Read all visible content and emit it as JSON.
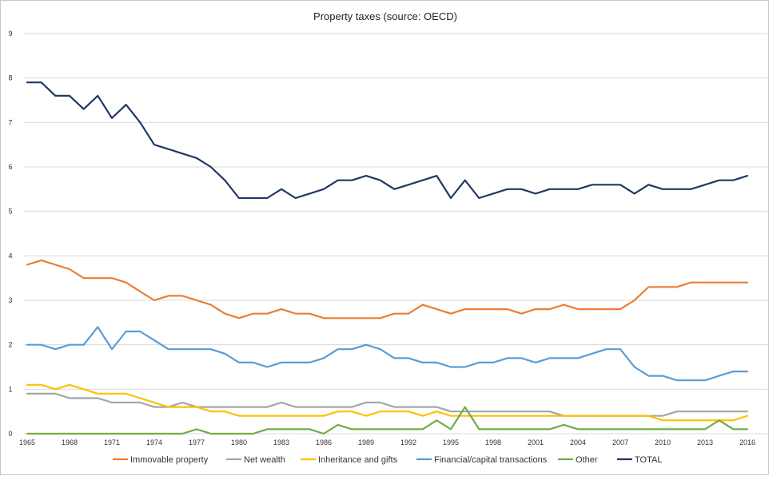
{
  "chart_data": {
    "type": "line",
    "title": "Property taxes (source: OECD)",
    "xlabel": "",
    "ylabel": "",
    "ylim": [
      0,
      9
    ],
    "yticks": [
      0,
      1,
      2,
      3,
      4,
      5,
      6,
      7,
      8,
      9
    ],
    "grid": true,
    "legend": "bottom",
    "x": [
      1965,
      1966,
      1967,
      1968,
      1969,
      1970,
      1971,
      1972,
      1973,
      1974,
      1975,
      1976,
      1977,
      1978,
      1979,
      1980,
      1981,
      1982,
      1983,
      1984,
      1985,
      1986,
      1987,
      1988,
      1989,
      1990,
      1991,
      1992,
      1993,
      1994,
      1995,
      1996,
      1997,
      1998,
      1999,
      2000,
      2001,
      2002,
      2003,
      2004,
      2005,
      2006,
      2007,
      2008,
      2009,
      2010,
      2011,
      2012,
      2013,
      2014,
      2015,
      2016
    ],
    "xtick_labels": [
      "1965",
      "1968",
      "1971",
      "1974",
      "1977",
      "1980",
      "1983",
      "1986",
      "1989",
      "1992",
      "1995",
      "1998",
      "2001",
      "2004",
      "2007",
      "2010",
      "2013",
      "2016"
    ],
    "series": [
      {
        "name": "Immovable property",
        "color": "#ed7d31",
        "values": [
          3.8,
          3.9,
          3.8,
          3.7,
          3.5,
          3.5,
          3.5,
          3.4,
          3.2,
          3.0,
          3.1,
          3.1,
          3.0,
          2.9,
          2.7,
          2.6,
          2.7,
          2.7,
          2.8,
          2.7,
          2.7,
          2.6,
          2.6,
          2.6,
          2.6,
          2.6,
          2.7,
          2.7,
          2.9,
          2.8,
          2.7,
          2.8,
          2.8,
          2.8,
          2.8,
          2.7,
          2.8,
          2.8,
          2.9,
          2.8,
          2.8,
          2.8,
          2.8,
          3.0,
          3.3,
          3.3,
          3.3,
          3.4,
          3.4,
          3.4,
          3.4,
          3.4
        ]
      },
      {
        "name": "Net wealth",
        "color": "#a5a5a5",
        "values": [
          0.9,
          0.9,
          0.9,
          0.8,
          0.8,
          0.8,
          0.7,
          0.7,
          0.7,
          0.6,
          0.6,
          0.7,
          0.6,
          0.6,
          0.6,
          0.6,
          0.6,
          0.6,
          0.7,
          0.6,
          0.6,
          0.6,
          0.6,
          0.6,
          0.7,
          0.7,
          0.6,
          0.6,
          0.6,
          0.6,
          0.5,
          0.5,
          0.5,
          0.5,
          0.5,
          0.5,
          0.5,
          0.5,
          0.4,
          0.4,
          0.4,
          0.4,
          0.4,
          0.4,
          0.4,
          0.4,
          0.5,
          0.5,
          0.5,
          0.5,
          0.5,
          0.5
        ]
      },
      {
        "name": "Inheritance and gifts",
        "color": "#ffc000",
        "values": [
          1.1,
          1.1,
          1.0,
          1.1,
          1.0,
          0.9,
          0.9,
          0.9,
          0.8,
          0.7,
          0.6,
          0.6,
          0.6,
          0.5,
          0.5,
          0.4,
          0.4,
          0.4,
          0.4,
          0.4,
          0.4,
          0.4,
          0.5,
          0.5,
          0.4,
          0.5,
          0.5,
          0.5,
          0.4,
          0.5,
          0.4,
          0.4,
          0.4,
          0.4,
          0.4,
          0.4,
          0.4,
          0.4,
          0.4,
          0.4,
          0.4,
          0.4,
          0.4,
          0.4,
          0.4,
          0.3,
          0.3,
          0.3,
          0.3,
          0.3,
          0.3,
          0.4
        ]
      },
      {
        "name": "Financial/capital transactions",
        "color": "#5b9bd5",
        "values": [
          2.0,
          2.0,
          1.9,
          2.0,
          2.0,
          2.4,
          1.9,
          2.3,
          2.3,
          2.1,
          1.9,
          1.9,
          1.9,
          1.9,
          1.8,
          1.6,
          1.6,
          1.5,
          1.6,
          1.6,
          1.6,
          1.7,
          1.9,
          1.9,
          2.0,
          1.9,
          1.7,
          1.7,
          1.6,
          1.6,
          1.5,
          1.5,
          1.6,
          1.6,
          1.7,
          1.7,
          1.6,
          1.7,
          1.7,
          1.7,
          1.8,
          1.9,
          1.9,
          1.5,
          1.3,
          1.3,
          1.2,
          1.2,
          1.2,
          1.3,
          1.4,
          1.4
        ]
      },
      {
        "name": "Other",
        "color": "#70ad47",
        "values": [
          0.0,
          0.0,
          0.0,
          0.0,
          0.0,
          0.0,
          0.0,
          0.0,
          0.0,
          0.0,
          0.0,
          0.0,
          0.1,
          0.0,
          0.0,
          0.0,
          0.0,
          0.1,
          0.1,
          0.1,
          0.1,
          0.0,
          0.2,
          0.1,
          0.1,
          0.1,
          0.1,
          0.1,
          0.1,
          0.3,
          0.1,
          0.6,
          0.1,
          0.1,
          0.1,
          0.1,
          0.1,
          0.1,
          0.2,
          0.1,
          0.1,
          0.1,
          0.1,
          0.1,
          0.1,
          0.1,
          0.1,
          0.1,
          0.1,
          0.3,
          0.1,
          0.1
        ]
      },
      {
        "name": "TOTAL",
        "color": "#203864",
        "values": [
          7.9,
          7.9,
          7.6,
          7.6,
          7.3,
          7.6,
          7.1,
          7.4,
          7.0,
          6.5,
          6.4,
          6.3,
          6.2,
          6.0,
          5.7,
          5.3,
          5.3,
          5.3,
          5.5,
          5.3,
          5.4,
          5.5,
          5.7,
          5.7,
          5.8,
          5.7,
          5.5,
          5.6,
          5.7,
          5.8,
          5.3,
          5.7,
          5.3,
          5.4,
          5.5,
          5.5,
          5.4,
          5.5,
          5.5,
          5.5,
          5.6,
          5.6,
          5.6,
          5.4,
          5.6,
          5.5,
          5.5,
          5.5,
          5.6,
          5.7,
          5.7,
          5.8
        ]
      }
    ]
  }
}
